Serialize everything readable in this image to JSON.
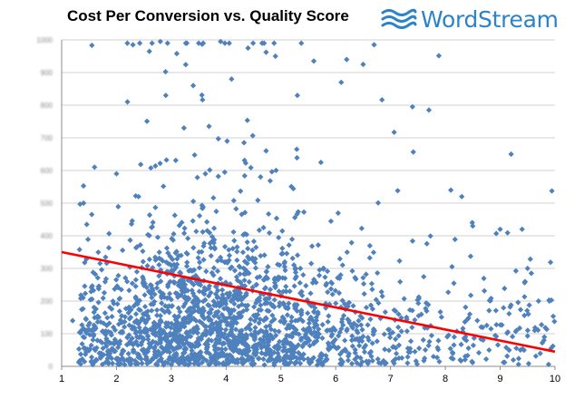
{
  "title": "Cost Per Conversion vs. Quality Score",
  "logo": {
    "text": "WordStream",
    "icon": "wave-icon",
    "color": "#2b83c9"
  },
  "chart_data": {
    "type": "scatter",
    "title": "Cost Per Conversion vs. Quality Score",
    "xlabel": "",
    "ylabel": "",
    "xlim": [
      1,
      10
    ],
    "ylim": [
      0,
      1000
    ],
    "x_ticks": [
      "1",
      "2",
      "3",
      "4",
      "5",
      "6",
      "7",
      "8",
      "9",
      "10"
    ],
    "y_ticks": [
      "0",
      "100",
      "200",
      "300",
      "400",
      "500",
      "600",
      "700",
      "800",
      "900",
      "1000"
    ],
    "y_ticks_blurred": true,
    "grid": "horizontal",
    "legend": "none",
    "marker": "diamond",
    "point_color": "#4f81bd",
    "trendline": {
      "color": "#ff0000",
      "x": [
        1,
        10
      ],
      "y": [
        350,
        45
      ]
    },
    "series": [
      {
        "distribution": "dense point cloud, greatest density near x = 3 to 4 and y < 300, thinning toward x = 10",
        "sample_points": [
          [
            2.3,
            985
          ],
          [
            2.6,
            965
          ],
          [
            2.8,
            995
          ],
          [
            3.1,
            958
          ],
          [
            3.5,
            990
          ],
          [
            3.9,
            995
          ],
          [
            4.4,
            975
          ],
          [
            4.9,
            950
          ],
          [
            5.6,
            935
          ],
          [
            6.2,
            940
          ],
          [
            6.5,
            925
          ],
          [
            6.7,
            985
          ],
          [
            2.2,
            810
          ],
          [
            2.9,
            830
          ],
          [
            3.4,
            860
          ],
          [
            4.1,
            880
          ],
          [
            5.3,
            830
          ],
          [
            6.1,
            870
          ],
          [
            7.4,
            795
          ],
          [
            7.7,
            785
          ],
          [
            9.2,
            650
          ],
          [
            1.6,
            610
          ],
          [
            1.4,
            500
          ],
          [
            2.0,
            590
          ],
          [
            8.1,
            540
          ],
          [
            8.3,
            520
          ],
          [
            8.5,
            430
          ],
          [
            9.0,
            420
          ],
          [
            9.4,
            420
          ],
          [
            9.5,
            300
          ],
          [
            9.7,
            200
          ],
          [
            9.9,
            200
          ],
          [
            9.8,
            80
          ],
          [
            1.2,
            140
          ],
          [
            1.5,
            50
          ],
          [
            1.8,
            70
          ]
        ]
      }
    ]
  }
}
